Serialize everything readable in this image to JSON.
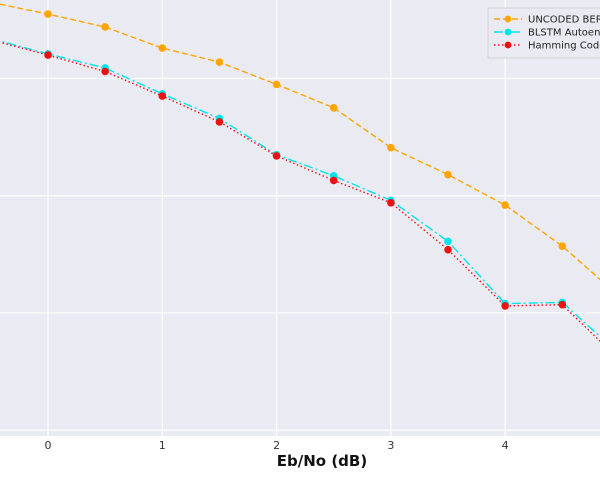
{
  "chart_data": {
    "type": "line",
    "xlabel": "Eb/No (dB)",
    "ylabel": "",
    "xlim": [
      -0.42,
      4.83
    ],
    "ylim": [
      -4.05,
      -0.33
    ],
    "y_scale": "log",
    "x_ticks": [
      0,
      1,
      2,
      3,
      4
    ],
    "x_tick_labels": [
      "0",
      "1",
      "2",
      "3",
      "4"
    ],
    "y_gridlines_log10": [
      -1,
      -2,
      -3,
      -4
    ],
    "grid": true,
    "background_color": "#eaeaf2",
    "legend_position": "top-right",
    "series": [
      {
        "name": "UNCODED BER",
        "color": "#ffa500",
        "line_style": "dashed",
        "marker": "circle",
        "x": [
          -0.5,
          0.0,
          0.5,
          1.0,
          1.5,
          2.0,
          2.5,
          3.0,
          3.5,
          4.0,
          4.5,
          5.0
        ],
        "log10_y": [
          -0.35,
          -0.45,
          -0.56,
          -0.74,
          -0.86,
          -1.05,
          -1.25,
          -1.59,
          -1.82,
          -2.08,
          -2.43,
          -2.86
        ]
      },
      {
        "name": "BLSTM Autoencoder",
        "color": "#00e5ee",
        "line_style": "dashdot",
        "marker": "circle",
        "x": [
          -0.5,
          0.0,
          0.5,
          1.0,
          1.5,
          2.0,
          2.5,
          3.0,
          3.5,
          4.0,
          4.5,
          5.0
        ],
        "log10_y": [
          -0.66,
          -0.79,
          -0.91,
          -1.13,
          -1.34,
          -1.65,
          -1.83,
          -2.04,
          -2.39,
          -2.92,
          -2.91,
          -3.35
        ]
      },
      {
        "name": "Hamming Code",
        "color": "#ee1111",
        "line_style": "dotted",
        "marker": "circle",
        "x": [
          -0.5,
          0.0,
          0.5,
          1.0,
          1.5,
          2.0,
          2.5,
          3.0,
          3.5,
          4.0,
          4.5,
          5.0
        ],
        "log10_y": [
          -0.67,
          -0.8,
          -0.94,
          -1.15,
          -1.37,
          -1.66,
          -1.87,
          -2.06,
          -2.46,
          -2.94,
          -2.93,
          -3.4
        ]
      }
    ]
  }
}
